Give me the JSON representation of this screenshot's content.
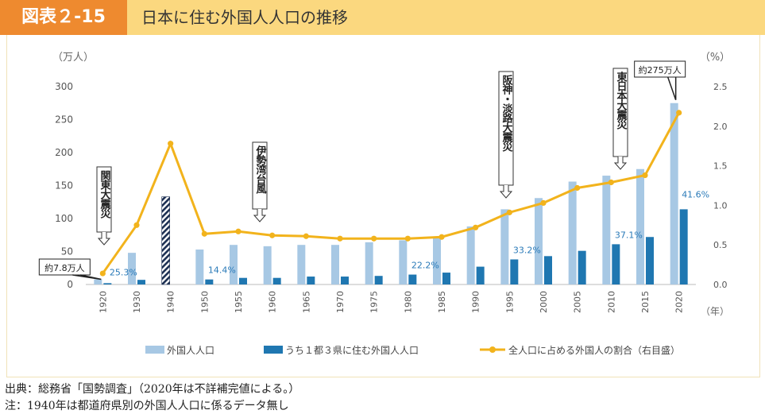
{
  "header": {
    "figure_label": "図表２-15",
    "title": "日本に住む外国人人口の推移"
  },
  "chart_data": {
    "type": "bar",
    "categories": [
      "1920",
      "1930",
      "1940",
      "1950",
      "1955",
      "1960",
      "1965",
      "1970",
      "1975",
      "1980",
      "1985",
      "1990",
      "1995",
      "2000",
      "2005",
      "2010",
      "2015",
      "2020"
    ],
    "series": [
      {
        "name": "外国人人口",
        "values": [
          7.8,
          48,
          133,
          53,
          60,
          58,
          60,
          60,
          64,
          67,
          72,
          88,
          114,
          131,
          156,
          165,
          175,
          275
        ]
      },
      {
        "name": "うち１都３県に住む外国人人口",
        "values": [
          2,
          7,
          null,
          7.6,
          10,
          10,
          12,
          12,
          13,
          15,
          18,
          27,
          38,
          43,
          51,
          61,
          72,
          114
        ]
      },
      {
        "name": "全人口に占める外国人の割合（右目盛）",
        "values": [
          0.14,
          0.75,
          1.78,
          0.64,
          0.67,
          0.62,
          0.61,
          0.58,
          0.58,
          0.58,
          0.6,
          0.72,
          0.91,
          1.03,
          1.22,
          1.29,
          1.38,
          2.17
        ]
      }
    ],
    "bar_pattern_index": 2,
    "ylabel_left": "（万人）",
    "ylabel_right": "（%）",
    "xunit": "（年）",
    "ylim_left": [
      0,
      300
    ],
    "ylim_right": [
      0,
      2.5
    ],
    "yticks_left": [
      "0",
      "50",
      "100",
      "150",
      "200",
      "250",
      "300"
    ],
    "yticks_right": [
      "0.0",
      "0.5",
      "1.0",
      "1.5",
      "2.0",
      "2.5"
    ],
    "legend_position": "bottom",
    "share_labels": [
      {
        "index": 0,
        "text": "25.3%"
      },
      {
        "index": 3,
        "text": "14.4%"
      },
      {
        "index": 9,
        "text": "22.2%"
      },
      {
        "index": 12,
        "text": "33.2%"
      },
      {
        "index": 15,
        "text": "37.1%"
      },
      {
        "index": 17,
        "text": "41.6%"
      }
    ],
    "callouts": [
      {
        "index": 0,
        "text": "約7.8万人"
      },
      {
        "index": 17,
        "text": "約275万人"
      }
    ],
    "events": [
      {
        "index": 0,
        "text": "関東大震災"
      },
      {
        "index": 5,
        "text": "伊勢湾台風"
      },
      {
        "index": 12,
        "text": "阪神・淡路大震災"
      },
      {
        "index": 15,
        "text": "東日本大震災"
      }
    ],
    "colors": {
      "total": "#a7c8e4",
      "metro": "#1f77b1",
      "ratio": "#f2b31c",
      "label": "#2a7ab8",
      "axis": "#888888"
    }
  },
  "footer": {
    "source": "出典：総務省「国勢調査」（2020年は不詳補完値による。）",
    "note": "注：1940年は都道府県別の外国人人口に係るデータ無し"
  }
}
